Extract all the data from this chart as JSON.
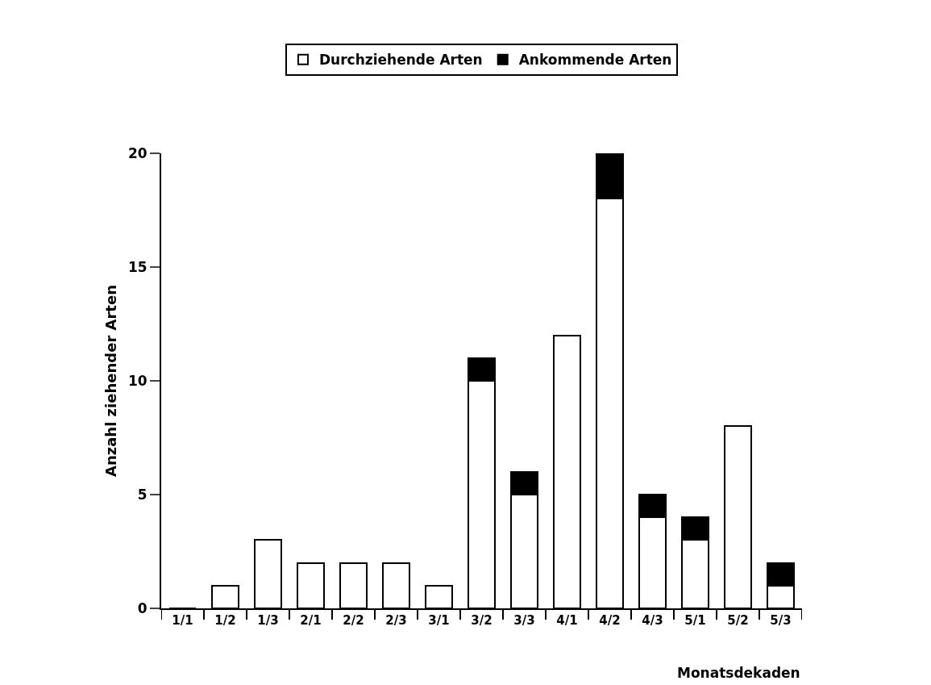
{
  "chart_data": {
    "type": "bar",
    "stacked": true,
    "xlabel": "Monatsdekaden",
    "ylabel": "Anzahl ziehender Arten",
    "categories": [
      "1/1",
      "1/2",
      "1/3",
      "2/1",
      "2/2",
      "2/3",
      "3/1",
      "3/2",
      "3/3",
      "4/1",
      "4/2",
      "4/3",
      "5/1",
      "5/2",
      "5/3"
    ],
    "series": [
      {
        "name": "Durchziehende Arten",
        "color": "#ffffff",
        "values": [
          0,
          1,
          3,
          2,
          2,
          2,
          1,
          10,
          5,
          12,
          18,
          4,
          3,
          8,
          1
        ]
      },
      {
        "name": "Ankommende Arten",
        "color": "#000000",
        "values": [
          0,
          0,
          0,
          0,
          0,
          0,
          0,
          1,
          1,
          0,
          2,
          1,
          1,
          0,
          1
        ]
      }
    ],
    "ylim": [
      0,
      20
    ],
    "yticks": [
      0,
      5,
      10,
      15,
      20
    ],
    "grid": false,
    "legend": "top"
  }
}
